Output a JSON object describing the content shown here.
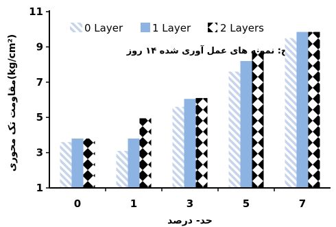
{
  "chart_data": {
    "type": "bar",
    "categories": [
      "0",
      "1",
      "3",
      "5",
      "7"
    ],
    "series": [
      {
        "name": "0 Layer",
        "values": [
          3.6,
          3.1,
          5.6,
          7.6,
          9.5
        ],
        "color": "#c6d5ec",
        "pattern": "diagonal-stripes"
      },
      {
        "name": "1 Layer",
        "values": [
          3.8,
          3.8,
          6.05,
          8.2,
          9.85
        ],
        "color": "#8db3e2",
        "pattern": "solid"
      },
      {
        "name": "2 Layers",
        "values": [
          3.8,
          4.95,
          6.1,
          8.7,
          9.85
        ],
        "color": "#000000",
        "pattern": "checker-diamond"
      }
    ],
    "ylim": [
      1,
      11
    ],
    "yticks": [
      "1",
      "3",
      "5",
      "7",
      "9",
      "11"
    ],
    "xlabel": "حد- درصد",
    "ylabel": "مقاومت تک محوری(kg/cm²)",
    "annotation": "ج: نمونه های عمل آوری شده ۱۴ روز",
    "legend_position": "top",
    "grid": false
  }
}
